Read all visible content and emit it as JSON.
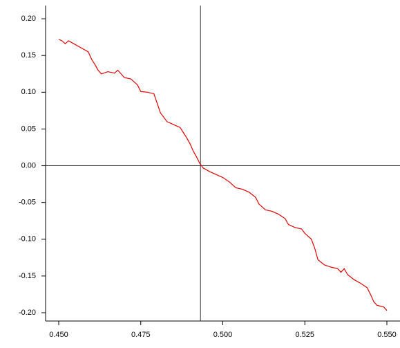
{
  "chart_data": {
    "type": "line",
    "x": [
      0.45,
      0.451,
      0.452,
      0.453,
      0.455,
      0.457,
      0.459,
      0.46,
      0.461,
      0.462,
      0.463,
      0.465,
      0.467,
      0.468,
      0.469,
      0.47,
      0.472,
      0.474,
      0.475,
      0.477,
      0.479,
      0.48,
      0.481,
      0.483,
      0.485,
      0.486,
      0.487,
      0.488,
      0.489,
      0.49,
      0.491,
      0.492,
      0.493,
      0.494,
      0.496,
      0.498,
      0.5,
      0.502,
      0.504,
      0.506,
      0.508,
      0.51,
      0.511,
      0.513,
      0.515,
      0.517,
      0.519,
      0.52,
      0.522,
      0.524,
      0.525,
      0.527,
      0.528,
      0.529,
      0.531,
      0.533,
      0.535,
      0.536,
      0.537,
      0.538,
      0.54,
      0.542,
      0.544,
      0.545,
      0.546,
      0.547,
      0.549,
      0.55
    ],
    "series": [
      {
        "color": "#e00000",
        "values": [
          0.172,
          0.17,
          0.166,
          0.17,
          0.165,
          0.16,
          0.155,
          0.145,
          0.138,
          0.13,
          0.125,
          0.128,
          0.126,
          0.13,
          0.125,
          0.12,
          0.118,
          0.11,
          0.101,
          0.1,
          0.098,
          0.085,
          0.072,
          0.06,
          0.056,
          0.054,
          0.052,
          0.045,
          0.038,
          0.03,
          0.02,
          0.012,
          0.003,
          -0.003,
          -0.008,
          -0.012,
          -0.016,
          -0.022,
          -0.03,
          -0.032,
          -0.036,
          -0.043,
          -0.052,
          -0.06,
          -0.062,
          -0.066,
          -0.072,
          -0.08,
          -0.084,
          -0.086,
          -0.092,
          -0.1,
          -0.112,
          -0.128,
          -0.135,
          -0.138,
          -0.14,
          -0.145,
          -0.14,
          -0.148,
          -0.155,
          -0.16,
          -0.166,
          -0.175,
          -0.185,
          -0.19,
          -0.192,
          -0.197
        ]
      }
    ],
    "xlim": [
      0.446,
      0.554
    ],
    "ylim": [
      -0.2113,
      0.218
    ],
    "xticks": [
      {
        "value": 0.45,
        "label": "0.450"
      },
      {
        "value": 0.475,
        "label": "0.475"
      },
      {
        "value": 0.5,
        "label": "0.500"
      },
      {
        "value": 0.525,
        "label": "0.525"
      },
      {
        "value": 0.55,
        "label": "0.550"
      }
    ],
    "yticks": [
      {
        "value": 0.2,
        "label": "0.20"
      },
      {
        "value": 0.15,
        "label": "0.15"
      },
      {
        "value": 0.1,
        "label": "0.10"
      },
      {
        "value": 0.05,
        "label": "0.05"
      },
      {
        "value": 0,
        "label": "0.00"
      },
      {
        "value": -0.05,
        "label": "-0.05"
      },
      {
        "value": -0.1,
        "label": "-0.10"
      },
      {
        "value": -0.15,
        "label": "-0.15"
      },
      {
        "value": -0.2,
        "label": "-0.20"
      }
    ],
    "vline": 0.4932,
    "hline": 0
  }
}
